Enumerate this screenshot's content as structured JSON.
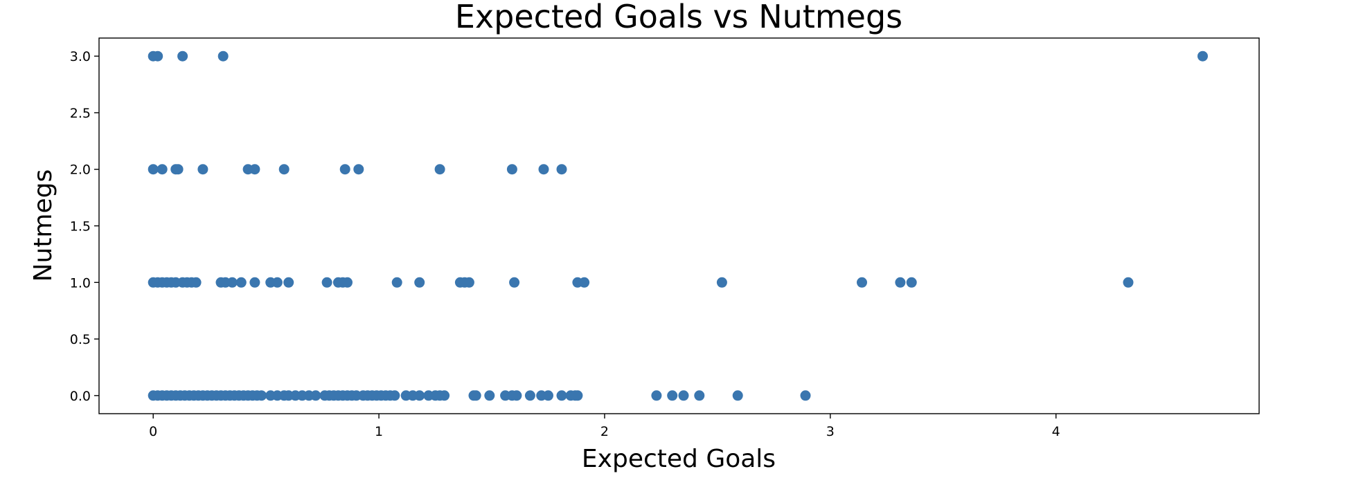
{
  "chart_data": {
    "type": "scatter",
    "title": "Expected Goals vs Nutmegs",
    "xlabel": "Expected Goals",
    "ylabel": "Nutmegs",
    "xlim": [
      -0.24,
      4.9
    ],
    "ylim": [
      -0.16,
      3.16
    ],
    "xticks": [
      0,
      1,
      2,
      3,
      4
    ],
    "yticks": [
      0.0,
      0.5,
      1.0,
      1.5,
      2.0,
      2.5,
      3.0
    ],
    "xtick_labels": [
      "0",
      "1",
      "2",
      "3",
      "4"
    ],
    "ytick_labels": [
      "0.0",
      "0.5",
      "1.0",
      "1.5",
      "2.0",
      "2.5",
      "3.0"
    ],
    "grid": false,
    "legend": "none",
    "marker_color": "#3a76af",
    "points": [
      [
        0.0,
        3
      ],
      [
        0.02,
        3
      ],
      [
        0.13,
        3
      ],
      [
        0.31,
        3
      ],
      [
        4.65,
        3
      ],
      [
        0.0,
        2
      ],
      [
        0.04,
        2
      ],
      [
        0.1,
        2
      ],
      [
        0.11,
        2
      ],
      [
        0.22,
        2
      ],
      [
        0.42,
        2
      ],
      [
        0.45,
        2
      ],
      [
        0.58,
        2
      ],
      [
        0.85,
        2
      ],
      [
        0.91,
        2
      ],
      [
        1.27,
        2
      ],
      [
        1.59,
        2
      ],
      [
        1.73,
        2
      ],
      [
        1.81,
        2
      ],
      [
        0.0,
        1
      ],
      [
        0.02,
        1
      ],
      [
        0.04,
        1
      ],
      [
        0.06,
        1
      ],
      [
        0.08,
        1
      ],
      [
        0.1,
        1
      ],
      [
        0.13,
        1
      ],
      [
        0.15,
        1
      ],
      [
        0.17,
        1
      ],
      [
        0.19,
        1
      ],
      [
        0.3,
        1
      ],
      [
        0.32,
        1
      ],
      [
        0.35,
        1
      ],
      [
        0.39,
        1
      ],
      [
        0.45,
        1
      ],
      [
        0.52,
        1
      ],
      [
        0.55,
        1
      ],
      [
        0.6,
        1
      ],
      [
        0.77,
        1
      ],
      [
        0.82,
        1
      ],
      [
        0.84,
        1
      ],
      [
        0.86,
        1
      ],
      [
        1.08,
        1
      ],
      [
        1.18,
        1
      ],
      [
        1.36,
        1
      ],
      [
        1.38,
        1
      ],
      [
        1.4,
        1
      ],
      [
        1.6,
        1
      ],
      [
        1.88,
        1
      ],
      [
        1.91,
        1
      ],
      [
        2.52,
        1
      ],
      [
        3.14,
        1
      ],
      [
        3.31,
        1
      ],
      [
        3.36,
        1
      ],
      [
        4.32,
        1
      ],
      [
        0.0,
        0
      ],
      [
        0.02,
        0
      ],
      [
        0.04,
        0
      ],
      [
        0.06,
        0
      ],
      [
        0.08,
        0
      ],
      [
        0.1,
        0
      ],
      [
        0.12,
        0
      ],
      [
        0.14,
        0
      ],
      [
        0.16,
        0
      ],
      [
        0.18,
        0
      ],
      [
        0.2,
        0
      ],
      [
        0.22,
        0
      ],
      [
        0.24,
        0
      ],
      [
        0.26,
        0
      ],
      [
        0.28,
        0
      ],
      [
        0.3,
        0
      ],
      [
        0.32,
        0
      ],
      [
        0.34,
        0
      ],
      [
        0.36,
        0
      ],
      [
        0.38,
        0
      ],
      [
        0.4,
        0
      ],
      [
        0.42,
        0
      ],
      [
        0.44,
        0
      ],
      [
        0.46,
        0
      ],
      [
        0.48,
        0
      ],
      [
        0.52,
        0
      ],
      [
        0.55,
        0
      ],
      [
        0.58,
        0
      ],
      [
        0.6,
        0
      ],
      [
        0.63,
        0
      ],
      [
        0.66,
        0
      ],
      [
        0.69,
        0
      ],
      [
        0.72,
        0
      ],
      [
        0.76,
        0
      ],
      [
        0.78,
        0
      ],
      [
        0.8,
        0
      ],
      [
        0.82,
        0
      ],
      [
        0.84,
        0
      ],
      [
        0.86,
        0
      ],
      [
        0.88,
        0
      ],
      [
        0.9,
        0
      ],
      [
        0.93,
        0
      ],
      [
        0.95,
        0
      ],
      [
        0.97,
        0
      ],
      [
        0.99,
        0
      ],
      [
        1.01,
        0
      ],
      [
        1.03,
        0
      ],
      [
        1.05,
        0
      ],
      [
        1.07,
        0
      ],
      [
        1.12,
        0
      ],
      [
        1.15,
        0
      ],
      [
        1.18,
        0
      ],
      [
        1.22,
        0
      ],
      [
        1.25,
        0
      ],
      [
        1.27,
        0
      ],
      [
        1.29,
        0
      ],
      [
        1.42,
        0
      ],
      [
        1.43,
        0
      ],
      [
        1.49,
        0
      ],
      [
        1.56,
        0
      ],
      [
        1.59,
        0
      ],
      [
        1.61,
        0
      ],
      [
        1.67,
        0
      ],
      [
        1.72,
        0
      ],
      [
        1.75,
        0
      ],
      [
        1.81,
        0
      ],
      [
        1.85,
        0
      ],
      [
        1.87,
        0
      ],
      [
        1.88,
        0
      ],
      [
        2.23,
        0
      ],
      [
        2.3,
        0
      ],
      [
        2.35,
        0
      ],
      [
        2.42,
        0
      ],
      [
        2.59,
        0
      ],
      [
        2.89,
        0
      ]
    ]
  }
}
